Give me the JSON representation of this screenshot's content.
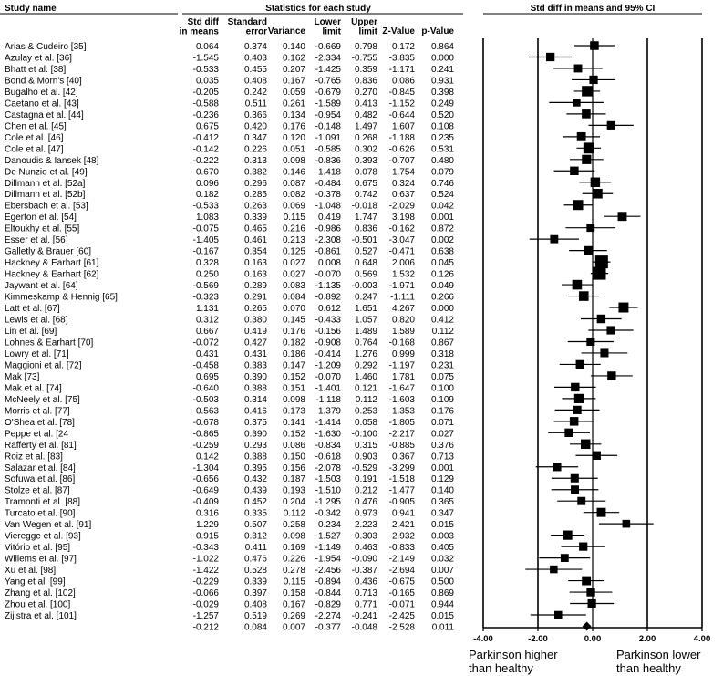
{
  "headers": {
    "study_name": "Study name",
    "stats_group": "Statistics for each study",
    "plot_title": "Std diff in means and 95% CI",
    "columns": [
      [
        "Std diff",
        "in means"
      ],
      [
        "Standard",
        "error"
      ],
      [
        "Variance"
      ],
      [
        "Lower",
        "limit"
      ],
      [
        "Upper",
        "limit"
      ],
      [
        "Z-Value"
      ],
      [
        "p-Value"
      ]
    ]
  },
  "footnotes": {
    "left": [
      "Parkinson higher",
      "than healthy"
    ],
    "right": [
      "Parkinson lower",
      "than healthy"
    ]
  },
  "chart_data": {
    "type": "forest",
    "title": "Std diff in means and 95% CI",
    "xlim": [
      -4,
      4
    ],
    "xticks": [
      -4,
      -2,
      0,
      2,
      4
    ],
    "xtick_labels": [
      "-4.00",
      "-2.00",
      "0.00",
      "2.00",
      "4.00"
    ],
    "studies": [
      {
        "name": "Arias & Cudeiro [35]",
        "smd": "0.064",
        "se": "0.374",
        "var": "0.140",
        "lower": "-0.669",
        "upper": "0.798",
        "z": "0.172",
        "p": "0.864"
      },
      {
        "name": "Azulay et al. [36]",
        "smd": "-1.545",
        "se": "0.403",
        "var": "0.162",
        "lower": "-2.334",
        "upper": "-0.755",
        "z": "-3.835",
        "p": "0.000"
      },
      {
        "name": "Bhatt et al. [38]",
        "smd": "-0.533",
        "se": "0.455",
        "var": "0.207",
        "lower": "-1.425",
        "upper": "0.359",
        "z": "-1.171",
        "p": "0.241"
      },
      {
        "name": "Bond & Morn's [40]",
        "smd": "0.035",
        "se": "0.408",
        "var": "0.167",
        "lower": "-0.765",
        "upper": "0.836",
        "z": "0.086",
        "p": "0.931"
      },
      {
        "name": "Bugalho et al. [42]",
        "smd": "-0.205",
        "se": "0.242",
        "var": "0.059",
        "lower": "-0.679",
        "upper": "0.270",
        "z": "-0.845",
        "p": "0.398"
      },
      {
        "name": "Caetano et al. [43]",
        "smd": "-0.588",
        "se": "0.511",
        "var": "0.261",
        "lower": "-1.589",
        "upper": "0.413",
        "z": "-1.152",
        "p": "0.249"
      },
      {
        "name": "Castagna et al. [44]",
        "smd": "-0.236",
        "se": "0.366",
        "var": "0.134",
        "lower": "-0.954",
        "upper": "0.482",
        "z": "-0.644",
        "p": "0.520"
      },
      {
        "name": "Chen et al. [45]",
        "smd": "0.675",
        "se": "0.420",
        "var": "0.176",
        "lower": "-0.148",
        "upper": "1.497",
        "z": "1.607",
        "p": "0.108"
      },
      {
        "name": "Cole et al. [46]",
        "smd": "-0.412",
        "se": "0.347",
        "var": "0.120",
        "lower": "-1.091",
        "upper": "0.268",
        "z": "-1.188",
        "p": "0.235"
      },
      {
        "name": "Cole et al. [47]",
        "smd": "-0.142",
        "se": "0.226",
        "var": "0.051",
        "lower": "-0.585",
        "upper": "0.302",
        "z": "-0.626",
        "p": "0.531"
      },
      {
        "name": "Danoudis & Iansek [48]",
        "smd": "-0.222",
        "se": "0.313",
        "var": "0.098",
        "lower": "-0.836",
        "upper": "0.393",
        "z": "-0.707",
        "p": "0.480"
      },
      {
        "name": "De Nunzio et al. [49]",
        "smd": "-0.670",
        "se": "0.382",
        "var": "0.146",
        "lower": "-1.418",
        "upper": "0.078",
        "z": "-1.754",
        "p": "0.079"
      },
      {
        "name": "Dillmann et al. [52a]",
        "smd": "0.096",
        "se": "0.296",
        "var": "0.087",
        "lower": "-0.484",
        "upper": "0.675",
        "z": "0.324",
        "p": "0.746"
      },
      {
        "name": "Dillmann et al. [52b]",
        "smd": "0.182",
        "se": "0.285",
        "var": "0.082",
        "lower": "-0.378",
        "upper": "0.742",
        "z": "0.637",
        "p": "0.524"
      },
      {
        "name": "Ebersbach et al. [53]",
        "smd": "-0.533",
        "se": "0.263",
        "var": "0.069",
        "lower": "-1.048",
        "upper": "-0.018",
        "z": "-2.029",
        "p": "0.042"
      },
      {
        "name": "Egerton et al. [54]",
        "smd": "1.083",
        "se": "0.339",
        "var": "0.115",
        "lower": "0.419",
        "upper": "1.747",
        "z": "3.198",
        "p": "0.001"
      },
      {
        "name": "Eltoukhy et al. [55]",
        "smd": "-0.075",
        "se": "0.465",
        "var": "0.216",
        "lower": "-0.986",
        "upper": "0.836",
        "z": "-0.162",
        "p": "0.872"
      },
      {
        "name": "Esser et al. [56]",
        "smd": "-1.405",
        "se": "0.461",
        "var": "0.213",
        "lower": "-2.308",
        "upper": "-0.501",
        "z": "-3.047",
        "p": "0.002"
      },
      {
        "name": "Galletly & Brauer [60]",
        "smd": "-0.167",
        "se": "0.354",
        "var": "0.125",
        "lower": "-0.861",
        "upper": "0.527",
        "z": "-0.471",
        "p": "0.638"
      },
      {
        "name": "Hackney & Earhart [61]",
        "smd": "0.328",
        "se": "0.163",
        "var": "0.027",
        "lower": "0.008",
        "upper": "0.648",
        "z": "2.006",
        "p": "0.045"
      },
      {
        "name": "Hackney & Earhart [62]",
        "smd": "0.250",
        "se": "0.163",
        "var": "0.027",
        "lower": "-0.070",
        "upper": "0.569",
        "z": "1.532",
        "p": "0.126"
      },
      {
        "name": "Jaywant et al. [64]",
        "smd": "-0.569",
        "se": "0.289",
        "var": "0.083",
        "lower": "-1.135",
        "upper": "-0.003",
        "z": "-1.971",
        "p": "0.049"
      },
      {
        "name": "Kimmeskamp & Hennig [65]",
        "smd": "-0.323",
        "se": "0.291",
        "var": "0.084",
        "lower": "-0.892",
        "upper": "0.247",
        "z": "-1.111",
        "p": "0.266"
      },
      {
        "name": "Latt et al. [67]",
        "smd": "1.131",
        "se": "0.265",
        "var": "0.070",
        "lower": "0.612",
        "upper": "1.651",
        "z": "4.267",
        "p": "0.000"
      },
      {
        "name": "Lewis et al. [68]",
        "smd": "0.312",
        "se": "0.380",
        "var": "0.145",
        "lower": "-0.433",
        "upper": "1.057",
        "z": "0.820",
        "p": "0.412"
      },
      {
        "name": "Lin et al. [69]",
        "smd": "0.667",
        "se": "0.419",
        "var": "0.176",
        "lower": "-0.156",
        "upper": "1.489",
        "z": "1.589",
        "p": "0.112"
      },
      {
        "name": "Lohnes & Earhart [70]",
        "smd": "-0.072",
        "se": "0.427",
        "var": "0.182",
        "lower": "-0.908",
        "upper": "0.764",
        "z": "-0.168",
        "p": "0.867"
      },
      {
        "name": "Lowry et al. [71]",
        "smd": "0.431",
        "se": "0.431",
        "var": "0.186",
        "lower": "-0.414",
        "upper": "1.276",
        "z": "0.999",
        "p": "0.318"
      },
      {
        "name": "Maggioni et al. [72]",
        "smd": "-0.458",
        "se": "0.383",
        "var": "0.147",
        "lower": "-1.209",
        "upper": "0.292",
        "z": "-1.197",
        "p": "0.231"
      },
      {
        "name": "Mak [73]",
        "smd": "0.695",
        "se": "0.390",
        "var": "0.152",
        "lower": "-0.070",
        "upper": "1.460",
        "z": "1.781",
        "p": "0.075"
      },
      {
        "name": "Mak et al. [74]",
        "smd": "-0.640",
        "se": "0.388",
        "var": "0.151",
        "lower": "-1.401",
        "upper": "0.121",
        "z": "-1.647",
        "p": "0.100"
      },
      {
        "name": "McNeely et al. [75]",
        "smd": "-0.503",
        "se": "0.314",
        "var": "0.098",
        "lower": "-1.118",
        "upper": "0.112",
        "z": "-1.603",
        "p": "0.109"
      },
      {
        "name": "Morris et al. [77]",
        "smd": "-0.563",
        "se": "0.416",
        "var": "0.173",
        "lower": "-1.379",
        "upper": "0.253",
        "z": "-1.353",
        "p": "0.176"
      },
      {
        "name": "O'Shea et al. [78]",
        "smd": "-0.678",
        "se": "0.375",
        "var": "0.141",
        "lower": "-1.414",
        "upper": "0.058",
        "z": "-1.805",
        "p": "0.071"
      },
      {
        "name": "Peppe et al. [24",
        "smd": "-0.865",
        "se": "0.390",
        "var": "0.152",
        "lower": "-1.630",
        "upper": "-0.100",
        "z": "-2.217",
        "p": "0.027"
      },
      {
        "name": "Rafferty et al. [81]",
        "smd": "-0.259",
        "se": "0.293",
        "var": "0.086",
        "lower": "-0.834",
        "upper": "0.315",
        "z": "-0.885",
        "p": "0.376"
      },
      {
        "name": "Roiz et al. [83]",
        "smd": "0.142",
        "se": "0.388",
        "var": "0.150",
        "lower": "-0.618",
        "upper": "0.903",
        "z": "0.367",
        "p": "0.713"
      },
      {
        "name": "Salazar et al. [84]",
        "smd": "-1.304",
        "se": "0.395",
        "var": "0.156",
        "lower": "-2.078",
        "upper": "-0.529",
        "z": "-3.299",
        "p": "0.001"
      },
      {
        "name": "Sofuwa et al. [86]",
        "smd": "-0.656",
        "se": "0.432",
        "var": "0.187",
        "lower": "-1.503",
        "upper": "0.191",
        "z": "-1.518",
        "p": "0.129"
      },
      {
        "name": "Stolze et al. [87]",
        "smd": "-0.649",
        "se": "0.439",
        "var": "0.193",
        "lower": "-1.510",
        "upper": "0.212",
        "z": "-1.477",
        "p": "0.140"
      },
      {
        "name": "Tramonti et al. [88]",
        "smd": "-0.409",
        "se": "0.452",
        "var": "0.204",
        "lower": "-1.295",
        "upper": "0.476",
        "z": "-0.905",
        "p": "0.365"
      },
      {
        "name": "Turcato et al. [90]",
        "smd": "0.316",
        "se": "0.335",
        "var": "0.112",
        "lower": "-0.342",
        "upper": "0.973",
        "z": "0.941",
        "p": "0.347"
      },
      {
        "name": "Van Wegen et al. [91]",
        "smd": "1.229",
        "se": "0.507",
        "var": "0.258",
        "lower": "0.234",
        "upper": "2.223",
        "z": "2.421",
        "p": "0.015"
      },
      {
        "name": "Vieregge et al. [93]",
        "smd": "-0.915",
        "se": "0.312",
        "var": "0.098",
        "lower": "-1.527",
        "upper": "-0.303",
        "z": "-2.932",
        "p": "0.003"
      },
      {
        "name": "Vitório et al. [95]",
        "smd": "-0.343",
        "se": "0.411",
        "var": "0.169",
        "lower": "-1.149",
        "upper": "0.463",
        "z": "-0.833",
        "p": "0.405"
      },
      {
        "name": "Willems et al. [97]",
        "smd": "-1.022",
        "se": "0.476",
        "var": "0.226",
        "lower": "-1.954",
        "upper": "-0.090",
        "z": "-2.149",
        "p": "0.032"
      },
      {
        "name": "Xu et al. [98]",
        "smd": "-1.422",
        "se": "0.528",
        "var": "0.278",
        "lower": "-2.456",
        "upper": "-0.387",
        "z": "-2.694",
        "p": "0.007"
      },
      {
        "name": "Yang et al. [99]",
        "smd": "-0.229",
        "se": "0.339",
        "var": "0.115",
        "lower": "-0.894",
        "upper": "0.436",
        "z": "-0.675",
        "p": "0.500"
      },
      {
        "name": "Zhang et al. [102]",
        "smd": "-0.066",
        "se": "0.397",
        "var": "0.158",
        "lower": "-0.844",
        "upper": "0.713",
        "z": "-0.165",
        "p": "0.869"
      },
      {
        "name": "Zhou et al. [100]",
        "smd": "-0.029",
        "se": "0.408",
        "var": "0.167",
        "lower": "-0.829",
        "upper": "0.771",
        "z": "-0.071",
        "p": "0.944"
      },
      {
        "name": "Zijlstra et al. [101]",
        "smd": "-1.257",
        "se": "0.519",
        "var": "0.269",
        "lower": "-2.274",
        "upper": "-0.241",
        "z": "-2.425",
        "p": "0.015"
      }
    ],
    "summary": {
      "smd": "-0.212",
      "se": "0.084",
      "var": "0.007",
      "lower": "-0.377",
      "upper": "-0.048",
      "z": "-2.528",
      "p": "0.011"
    }
  }
}
